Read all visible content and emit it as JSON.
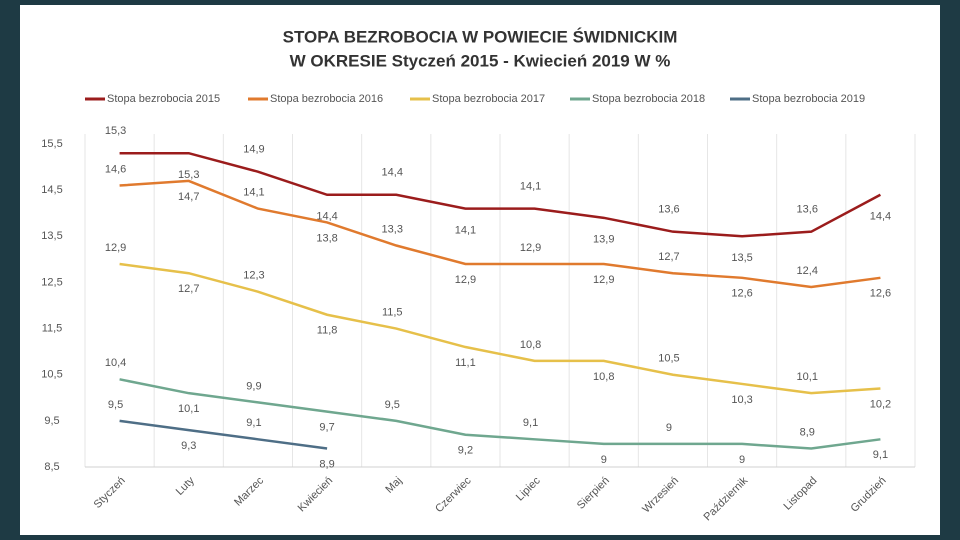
{
  "chart_data": {
    "type": "line",
    "title": "STOPA BEZROBOCIA W POWIECIE ŚWIDNICKIM",
    "subtitle": "W OKRESIE Styczeń 2015 - Kwiecień 2019 W %",
    "categories": [
      "Styczeń",
      "Luty",
      "Marzec",
      "Kwiecień",
      "Maj",
      "Czerwiec",
      "Lipiec",
      "Sierpień",
      "Wrzesień",
      "Październik",
      "Listopad",
      "Grudzień"
    ],
    "series": [
      {
        "name": "Stopa bezrobocia 2015",
        "color": "#9b1c1c",
        "values": [
          15.3,
          15.3,
          14.9,
          14.4,
          14.4,
          14.1,
          14.1,
          13.9,
          13.6,
          13.5,
          13.6,
          14.4
        ],
        "value_labels": [
          "15,3",
          "15,3",
          "14,9",
          "14,4",
          "14,4",
          "14,1",
          "14,1",
          "13,9",
          "13,6",
          "13,5",
          "13,6",
          "14,4"
        ]
      },
      {
        "name": "Stopa bezrobocia 2016",
        "color": "#e07a2e",
        "values": [
          14.6,
          14.7,
          14.1,
          13.8,
          13.3,
          12.9,
          12.9,
          12.9,
          12.7,
          12.6,
          12.4,
          12.6
        ],
        "value_labels": [
          "14,6",
          "14,7",
          "14,1",
          "13,8",
          "13,3",
          "12,9",
          "12,9",
          "12,9",
          "12,7",
          "12,6",
          "12,4",
          "12,6"
        ]
      },
      {
        "name": "Stopa bezrobocia 2017",
        "color": "#e6c04a",
        "values": [
          12.9,
          12.7,
          12.3,
          11.8,
          11.5,
          11.1,
          10.8,
          10.8,
          10.5,
          10.3,
          10.1,
          10.2
        ],
        "value_labels": [
          "12,9",
          "12,7",
          "12,3",
          "11,8",
          "11,5",
          "11,1",
          "10,8",
          "10,8",
          "10,5",
          "10,3",
          "10,1",
          "10,2"
        ]
      },
      {
        "name": "Stopa bezrobocia 2018",
        "color": "#6fa78f",
        "values": [
          10.4,
          10.1,
          9.9,
          9.7,
          9.5,
          9.2,
          9.1,
          9,
          9,
          9,
          8.9,
          9.1
        ],
        "value_labels": [
          "10,4",
          "10,1",
          "9,9",
          "9,7",
          "9,5",
          "9,2",
          "9,1",
          "9",
          "9",
          "9",
          "8,9",
          "9,1"
        ]
      },
      {
        "name": "Stopa bezrobocia 2019",
        "color": "#4e6e86",
        "values": [
          9.5,
          9.3,
          9.1,
          8.9,
          null,
          null,
          null,
          null,
          null,
          null,
          null,
          null
        ],
        "value_labels": [
          "9,5",
          "9,3",
          "9,1",
          "8,9",
          null,
          null,
          null,
          null,
          null,
          null,
          null,
          null
        ]
      }
    ],
    "ylim": [
      8.5,
      15.5
    ],
    "yticks": [
      {
        "value": 8.5,
        "label": "8,5"
      },
      {
        "value": 9.5,
        "label": "9,5"
      },
      {
        "value": 10.5,
        "label": "10,5"
      },
      {
        "value": 11.5,
        "label": "11,5"
      },
      {
        "value": 12.5,
        "label": "12,5"
      },
      {
        "value": 13.5,
        "label": "13,5"
      },
      {
        "value": 14.5,
        "label": "14,5"
      },
      {
        "value": 15.5,
        "label": "15,5"
      }
    ],
    "grid": false,
    "legend": "top"
  }
}
